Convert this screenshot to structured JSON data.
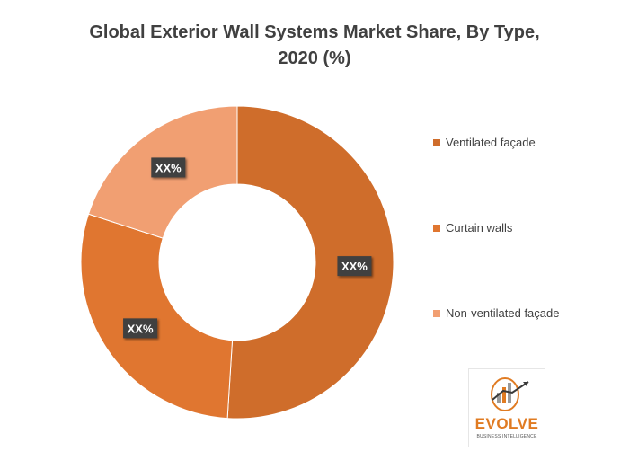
{
  "chart_data": {
    "type": "pie",
    "donut": true,
    "title": "Global  Exterior Wall Systems Market Share, By  Type,",
    "subtitle": "2020 (%)",
    "categories": [
      "Ventilated façade",
      "Curtain walls",
      "Non-ventilated façade"
    ],
    "values": [
      51,
      29,
      20
    ],
    "data_labels": [
      "XX%",
      "XX%",
      "XX%"
    ],
    "colors": [
      "#cf6d2b",
      "#e07630",
      "#f19f72"
    ],
    "legend_position": "right"
  },
  "logo": {
    "word": "EVOLVE",
    "sub": "BUSINESS INTELLIGENCE"
  }
}
